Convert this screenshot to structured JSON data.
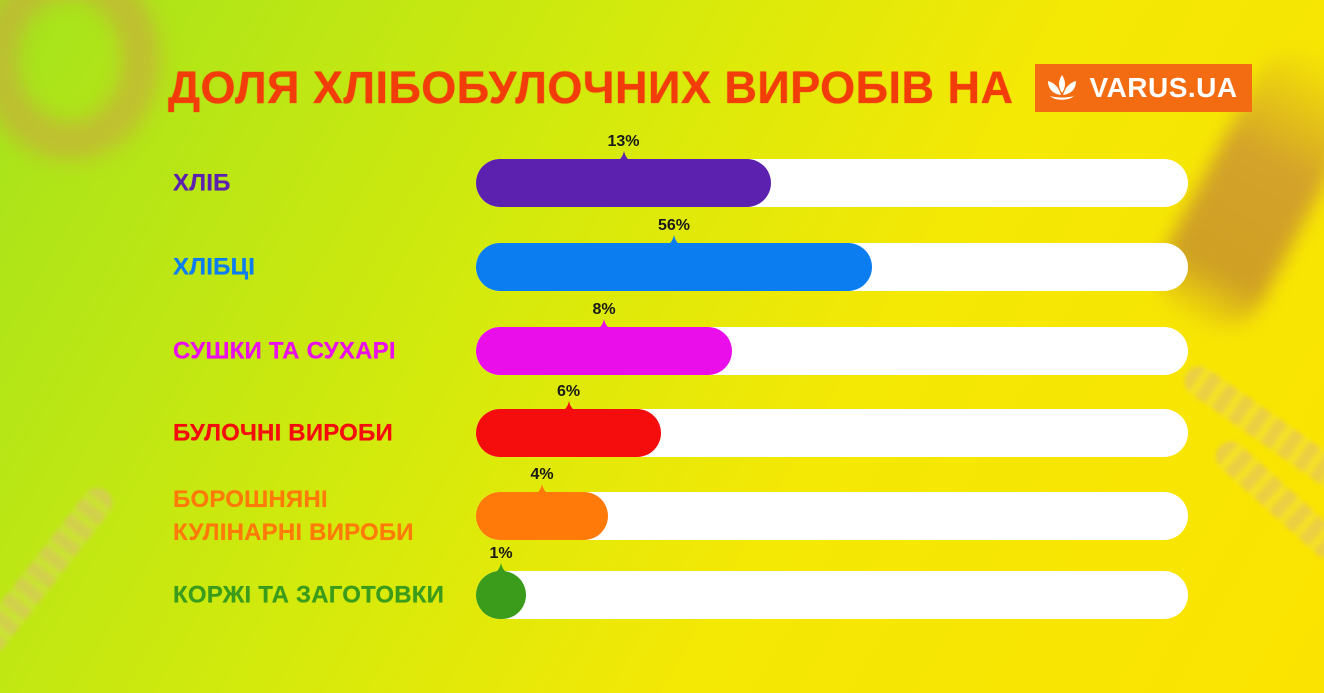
{
  "title": "ДОЛЯ ХЛІБОБУЛОЧНИХ ВИРОБІВ НА",
  "logo": {
    "text": "VARUS.UA",
    "color": "#f46c11"
  },
  "chart_data": {
    "type": "bar",
    "orientation": "horizontal",
    "categories": [
      "ХЛІБ",
      "ХЛІБЦІ",
      "СУШКИ ТА СУХАРІ",
      "БУЛОЧНІ ВИРОБИ",
      "БОРОШНЯНІ\nКУЛІНАРНІ ВИРОБИ",
      "КОРЖІ ТА ЗАГОТОВКИ"
    ],
    "values": [
      13,
      56,
      8,
      6,
      4,
      1
    ],
    "value_labels": [
      "13%",
      "56%",
      "8%",
      "6%",
      "4%",
      "1%"
    ],
    "fill_fraction": [
      0.415,
      0.556,
      0.36,
      0.26,
      0.185,
      0.07
    ],
    "colors": [
      "#5d21b0",
      "#0b7df0",
      "#ea0fea",
      "#f50c0c",
      "#ff7a09",
      "#3b9b1a"
    ],
    "title": "ДОЛЯ ХЛІБОБУЛОЧНИХ ВИРОБІВ НА",
    "unit": "%"
  }
}
